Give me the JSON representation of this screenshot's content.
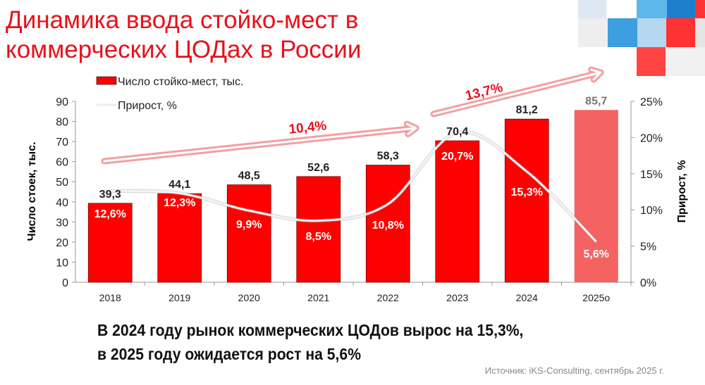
{
  "title_lines": [
    "Динамика ввода стойко-мест в",
    "коммерческих ЦОДах в России"
  ],
  "summary_lines": [
    "В 2024 году рынок коммерческих ЦОДов вырос на 15,3%,",
    "в 2025 году ожидается рост на 5,6%"
  ],
  "source": "Источник: iKS-Consulting, сентябрь 2025 г.",
  "colors": {
    "bar": "#ff0000",
    "bar_forecast": "#f46262",
    "accent": "#e8101a",
    "line": "#f2f2f2"
  },
  "chart_data": {
    "type": "bar",
    "categories": [
      "2018",
      "2019",
      "2020",
      "2021",
      "2022",
      "2023",
      "2024",
      "2025о"
    ],
    "series": [
      {
        "name": "Число стойко-мест, тыс.",
        "type": "bar",
        "axis": "left",
        "values": [
          39.3,
          44.1,
          48.5,
          52.6,
          58.3,
          70.4,
          81.2,
          85.7
        ],
        "labels": [
          "39,3",
          "44,1",
          "48,5",
          "52,6",
          "58,3",
          "70,4",
          "81,2",
          "85,7"
        ]
      },
      {
        "name": "Прирост, %",
        "type": "line",
        "axis": "right",
        "values": [
          12.6,
          12.3,
          9.9,
          8.5,
          10.8,
          20.7,
          15.3,
          5.6
        ],
        "labels": [
          "12,6%",
          "12,3%",
          "9,9%",
          "8,5%",
          "10,8%",
          "20,7%",
          "15,3%",
          "5,6%"
        ]
      }
    ],
    "ylabel": "Число стоек, тыс.",
    "y2label": "Прирост, %",
    "ylim": [
      0,
      90
    ],
    "yticks": [
      "0",
      "10",
      "20",
      "30",
      "40",
      "50",
      "60",
      "70",
      "80",
      "90"
    ],
    "y2lim": [
      0,
      25
    ],
    "y2ticks": [
      "0%",
      "5%",
      "10%",
      "15%",
      "20%",
      "25%"
    ],
    "annotations": [
      {
        "text": "10,4%",
        "span": [
          "2018",
          "2023"
        ]
      },
      {
        "text": "13,7%",
        "span": [
          "2023",
          "2025о"
        ]
      }
    ],
    "legend": "top-left"
  }
}
